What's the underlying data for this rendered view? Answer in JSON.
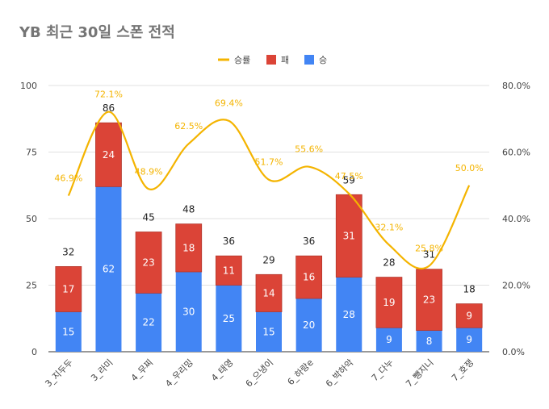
{
  "chart_data": {
    "type": "bar",
    "title": "YB 최근 30일 스폰 전적",
    "categories": [
      "3_지두두",
      "3_라미",
      "4_무찌",
      "4_우리밍",
      "4_태영",
      "6_으냉이",
      "6_하랑e",
      "6_박하악",
      "7_다누",
      "7_뺑지니",
      "7_호쟁"
    ],
    "series": [
      {
        "name": "승",
        "values": [
          15,
          62,
          22,
          30,
          25,
          15,
          20,
          28,
          9,
          8,
          9
        ]
      },
      {
        "name": "패",
        "values": [
          17,
          24,
          23,
          18,
          11,
          14,
          16,
          31,
          19,
          23,
          9
        ]
      }
    ],
    "totals": [
      32,
      86,
      45,
      48,
      36,
      29,
      36,
      59,
      28,
      31,
      18
    ],
    "win_rate": {
      "name": "승률",
      "values": [
        46.9,
        72.1,
        48.9,
        62.5,
        69.4,
        51.7,
        55.6,
        47.5,
        32.1,
        25.8,
        50.0
      ],
      "labels": [
        "46.9%",
        "72.1%",
        "48.9%",
        "62.5%",
        "69.4%",
        "51.7%",
        "55.6%",
        "47.5%",
        "32.1%",
        "25.8%",
        "50.0%"
      ]
    },
    "y_left": {
      "ylim": [
        0,
        100
      ],
      "ticks": [
        0,
        25,
        50,
        75,
        100
      ],
      "tick_labels": [
        "0",
        "25",
        "50",
        "75",
        "100"
      ]
    },
    "y_right": {
      "ylim": [
        0,
        80
      ],
      "ticks": [
        0,
        20,
        40,
        60,
        80
      ],
      "tick_labels": [
        "0.0%",
        "20.0%",
        "40.0%",
        "60.0%",
        "80.0%"
      ]
    },
    "grid": true,
    "stacked": true,
    "legend": {
      "position": "top",
      "items": [
        {
          "name": "승률",
          "color": "#F4B400",
          "shape": "line"
        },
        {
          "name": "패",
          "color": "#DB4437",
          "shape": "box"
        },
        {
          "name": "승",
          "color": "#4285F4",
          "shape": "box"
        }
      ]
    },
    "colors": {
      "win": "#4285F4",
      "loss": "#DB4437",
      "rate": "#F4B400"
    }
  }
}
